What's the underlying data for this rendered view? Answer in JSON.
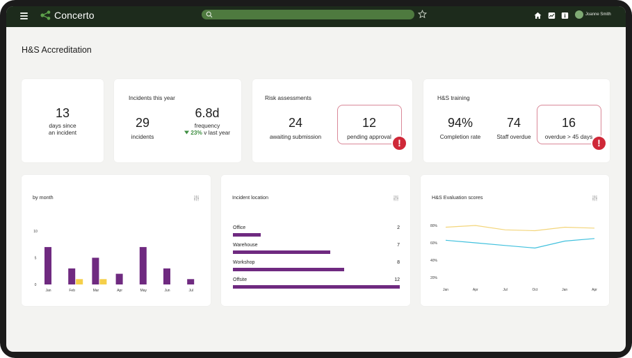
{
  "app": {
    "name": "Concerto",
    "user": "Joanne Smith"
  },
  "search": {
    "placeholder": ""
  },
  "page": {
    "title": "H&S Accreditation"
  },
  "kpi_days": {
    "value": "13",
    "label_line1": "days since",
    "label_line2": "an incident"
  },
  "kpi_incidents": {
    "title": "Incidents this year",
    "count": "29",
    "count_label": "incidents",
    "frequency": "6.8d",
    "frequency_label": "frequency",
    "delta": "23%",
    "delta_suffix": "v last year",
    "delta_color": "#3e8e41"
  },
  "kpi_risk": {
    "title": "Risk assessments",
    "awaiting": "24",
    "awaiting_label": "awaiting submission",
    "pending": "12",
    "pending_label": "pending approval"
  },
  "kpi_training": {
    "title": "H&S training",
    "completion": "94%",
    "completion_label": "Completion rate",
    "overdue": "74",
    "overdue_label": "Staff overdue",
    "overdue45": "16",
    "overdue45_label": "overdue > 45 days"
  },
  "alert_glyph": "!",
  "colors": {
    "topbar": "#1d2b1c",
    "accent_purple": "#6f2a80",
    "accent_yellow": "#f5cf4a",
    "alert_red": "#cf2838",
    "line_yellow": "#f3d57a",
    "line_cyan": "#3fc0dd"
  },
  "chart_month": {
    "title": "by month",
    "chart_data": {
      "type": "bar",
      "categories": [
        "Jan",
        "Feb",
        "Mar",
        "Apr",
        "May",
        "Jun",
        "Jul"
      ],
      "series": [
        {
          "values": [
            7,
            3,
            5,
            2,
            7,
            3,
            1
          ],
          "color": "#6f2a80"
        },
        {
          "values": [
            0,
            1,
            1,
            0,
            0,
            0,
            0
          ],
          "color": "#f5cf4a"
        }
      ],
      "yticks": [
        0,
        5,
        10
      ],
      "ylim": [
        0,
        10
      ]
    }
  },
  "chart_location": {
    "title": "Incident location",
    "chart_data": {
      "type": "bar",
      "categories": [
        "Office",
        "Warehouse",
        "Workshop",
        "Offsite"
      ],
      "values": [
        2,
        7,
        8,
        12
      ],
      "xlim": [
        0,
        12
      ]
    }
  },
  "chart_scores": {
    "title": "H&S Evaluation scores",
    "chart_data": {
      "type": "line",
      "x": [
        "Jan",
        "Apr",
        "Jul",
        "Oct",
        "Jan",
        "Apr"
      ],
      "series": [
        {
          "values": [
            78,
            80,
            75,
            74,
            78,
            77
          ],
          "color": "#f3d57a"
        },
        {
          "values": [
            63,
            60,
            57,
            54,
            62,
            65
          ],
          "color": "#3fc0dd"
        }
      ],
      "yticks": [
        "20%",
        "40%",
        "60%",
        "80%"
      ],
      "ylim": [
        20,
        80
      ]
    }
  }
}
